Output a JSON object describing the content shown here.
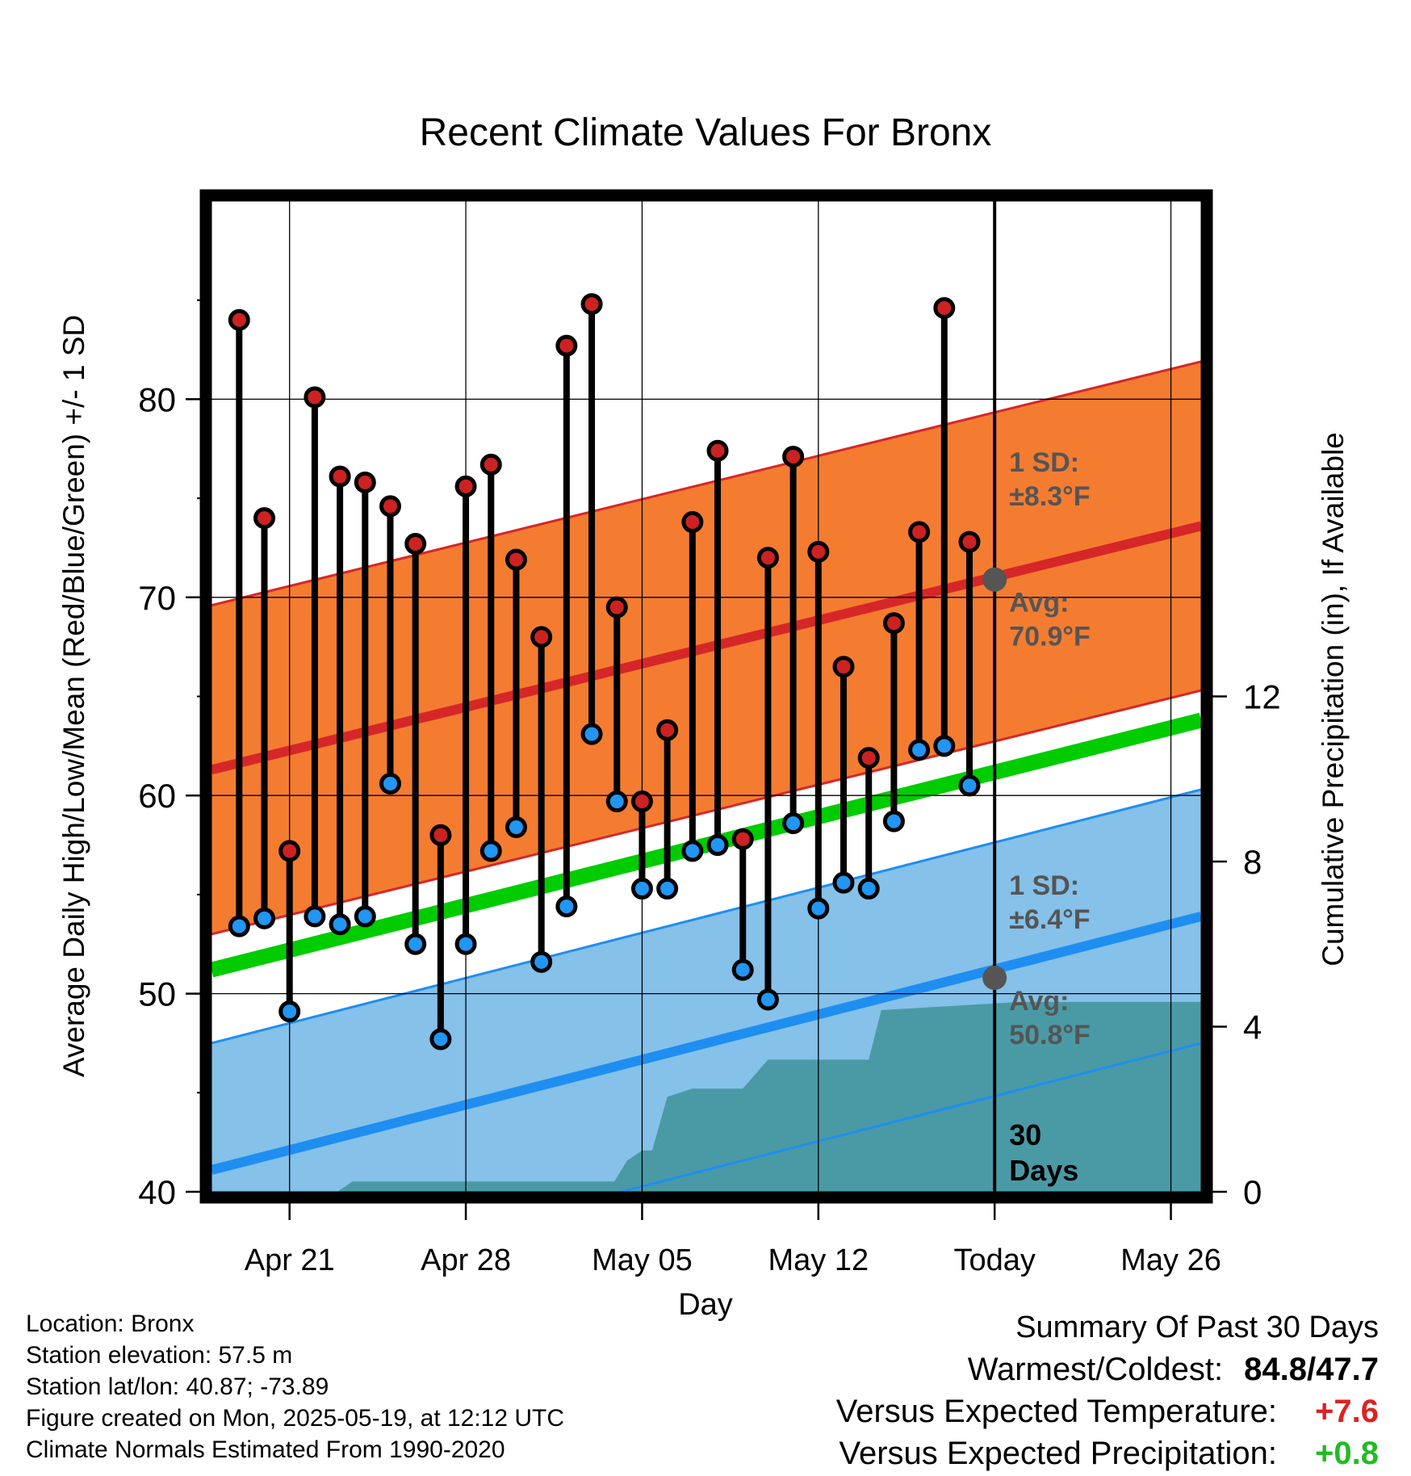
{
  "chart_data": {
    "type": "line",
    "title": "Recent Climate Values For Bronx",
    "xlabel": "Day",
    "ylabel": "Average Daily High/Low/Mean (Red/Blue/Green) +/- 1 SD",
    "y2label": "Cumulative Precipitation (in), If Available",
    "x_tick_labels": [
      "Apr 21",
      "Apr 28",
      "May 05",
      "May 12",
      "Today",
      "May 26"
    ],
    "x_ticks_day_of_year": [
      111,
      118,
      125,
      132,
      139,
      146
    ],
    "xlim_day_of_year": [
      107.9,
      147.2
    ],
    "today_day_of_year": 139,
    "ylim": [
      40,
      90
    ],
    "y_ticks": [
      40,
      50,
      60,
      70,
      80
    ],
    "y2lim": [
      0,
      24
    ],
    "y2_ticks": [
      0,
      4,
      8,
      12
    ],
    "grid": true,
    "normals": {
      "high_avg_start": 61.3,
      "high_avg_end": 73.6,
      "high_sd": 8.3,
      "low_avg_start": 41.1,
      "low_avg_end": 53.9,
      "low_sd": 6.4,
      "mean_avg_start": 51.2,
      "mean_avg_end": 63.8
    },
    "daily_highs": [
      84.0,
      74.0,
      57.2,
      80.1,
      76.1,
      75.8,
      74.6,
      72.7,
      58.0,
      75.6,
      76.7,
      71.9,
      68.0,
      82.7,
      84.8,
      69.5,
      59.7,
      63.3,
      73.8,
      77.4,
      57.8,
      72.0,
      77.1,
      72.3,
      66.5,
      61.9,
      68.7,
      73.3,
      84.6,
      72.8
    ],
    "daily_lows": [
      53.4,
      53.8,
      49.1,
      53.9,
      53.5,
      53.9,
      60.6,
      52.5,
      47.7,
      52.5,
      57.2,
      58.4,
      51.6,
      54.4,
      63.1,
      59.7,
      55.3,
      55.3,
      57.2,
      57.5,
      51.2,
      49.7,
      58.6,
      54.3,
      55.6,
      55.3,
      58.7,
      62.3,
      62.5,
      60.5
    ],
    "cumulative_precipitation_x_day_of_year": [
      107.9,
      112.9,
      113.5,
      117.9,
      123.9,
      124.4,
      125.0,
      125.4,
      126.0,
      127.0,
      128.0,
      129.0,
      130.0,
      131.0,
      132.0,
      133.0,
      134.0,
      134.5,
      140.0,
      147.2
    ],
    "cumulative_precipitation_in": [
      0.0,
      0.0,
      0.25,
      0.25,
      0.25,
      0.75,
      1.0,
      1.0,
      2.3,
      2.5,
      2.5,
      2.5,
      3.2,
      3.2,
      3.2,
      3.2,
      3.2,
      4.4,
      4.6,
      4.6
    ],
    "annotations": {
      "high_sd_label": "1 SD:",
      "high_sd_value": "±8.3°F",
      "high_avg_label": "Avg:",
      "high_avg_value": "70.9°F",
      "low_sd_label": "1 SD:",
      "low_sd_value": "±6.4°F",
      "low_avg_label": "Avg:",
      "low_avg_value": "50.8°F",
      "today_high_avg": 70.9,
      "today_low_avg": 50.8,
      "days_label_1": "30",
      "days_label_2": "Days"
    },
    "colors": {
      "high_band": "#f47c30",
      "high_line": "#d62728",
      "low_band": "#85c1e9",
      "low_line": "#1f8ef1",
      "mean_line": "#00cc00",
      "precip_fill": "#4a9aa5",
      "high_marker": "#cc2222",
      "low_marker": "#2196f3",
      "annotation_text": "#555555",
      "today_marker": "#555555"
    }
  },
  "meta": {
    "location": "Location: Bronx",
    "elevation": "Station elevation: 57.5 m",
    "latlon": "Station lat/lon: 40.87; -73.89",
    "created": "Figure created on Mon, 2025-05-19, at 12:12 UTC",
    "normals": "Climate Normals Estimated From 1990-2020"
  },
  "summary": {
    "title": "Summary Of Past 30 Days",
    "warmest_coldest_label": "Warmest/Coldest:",
    "warmest": "84.8",
    "slash": "/",
    "coldest": "47.7",
    "temp_label": "Versus Expected Temperature:",
    "temp_value": "+7.6",
    "temp_color": "#dd2222",
    "precip_label": "Versus Expected Precipitation:",
    "precip_value": "+0.8",
    "precip_color": "#22bb22"
  }
}
